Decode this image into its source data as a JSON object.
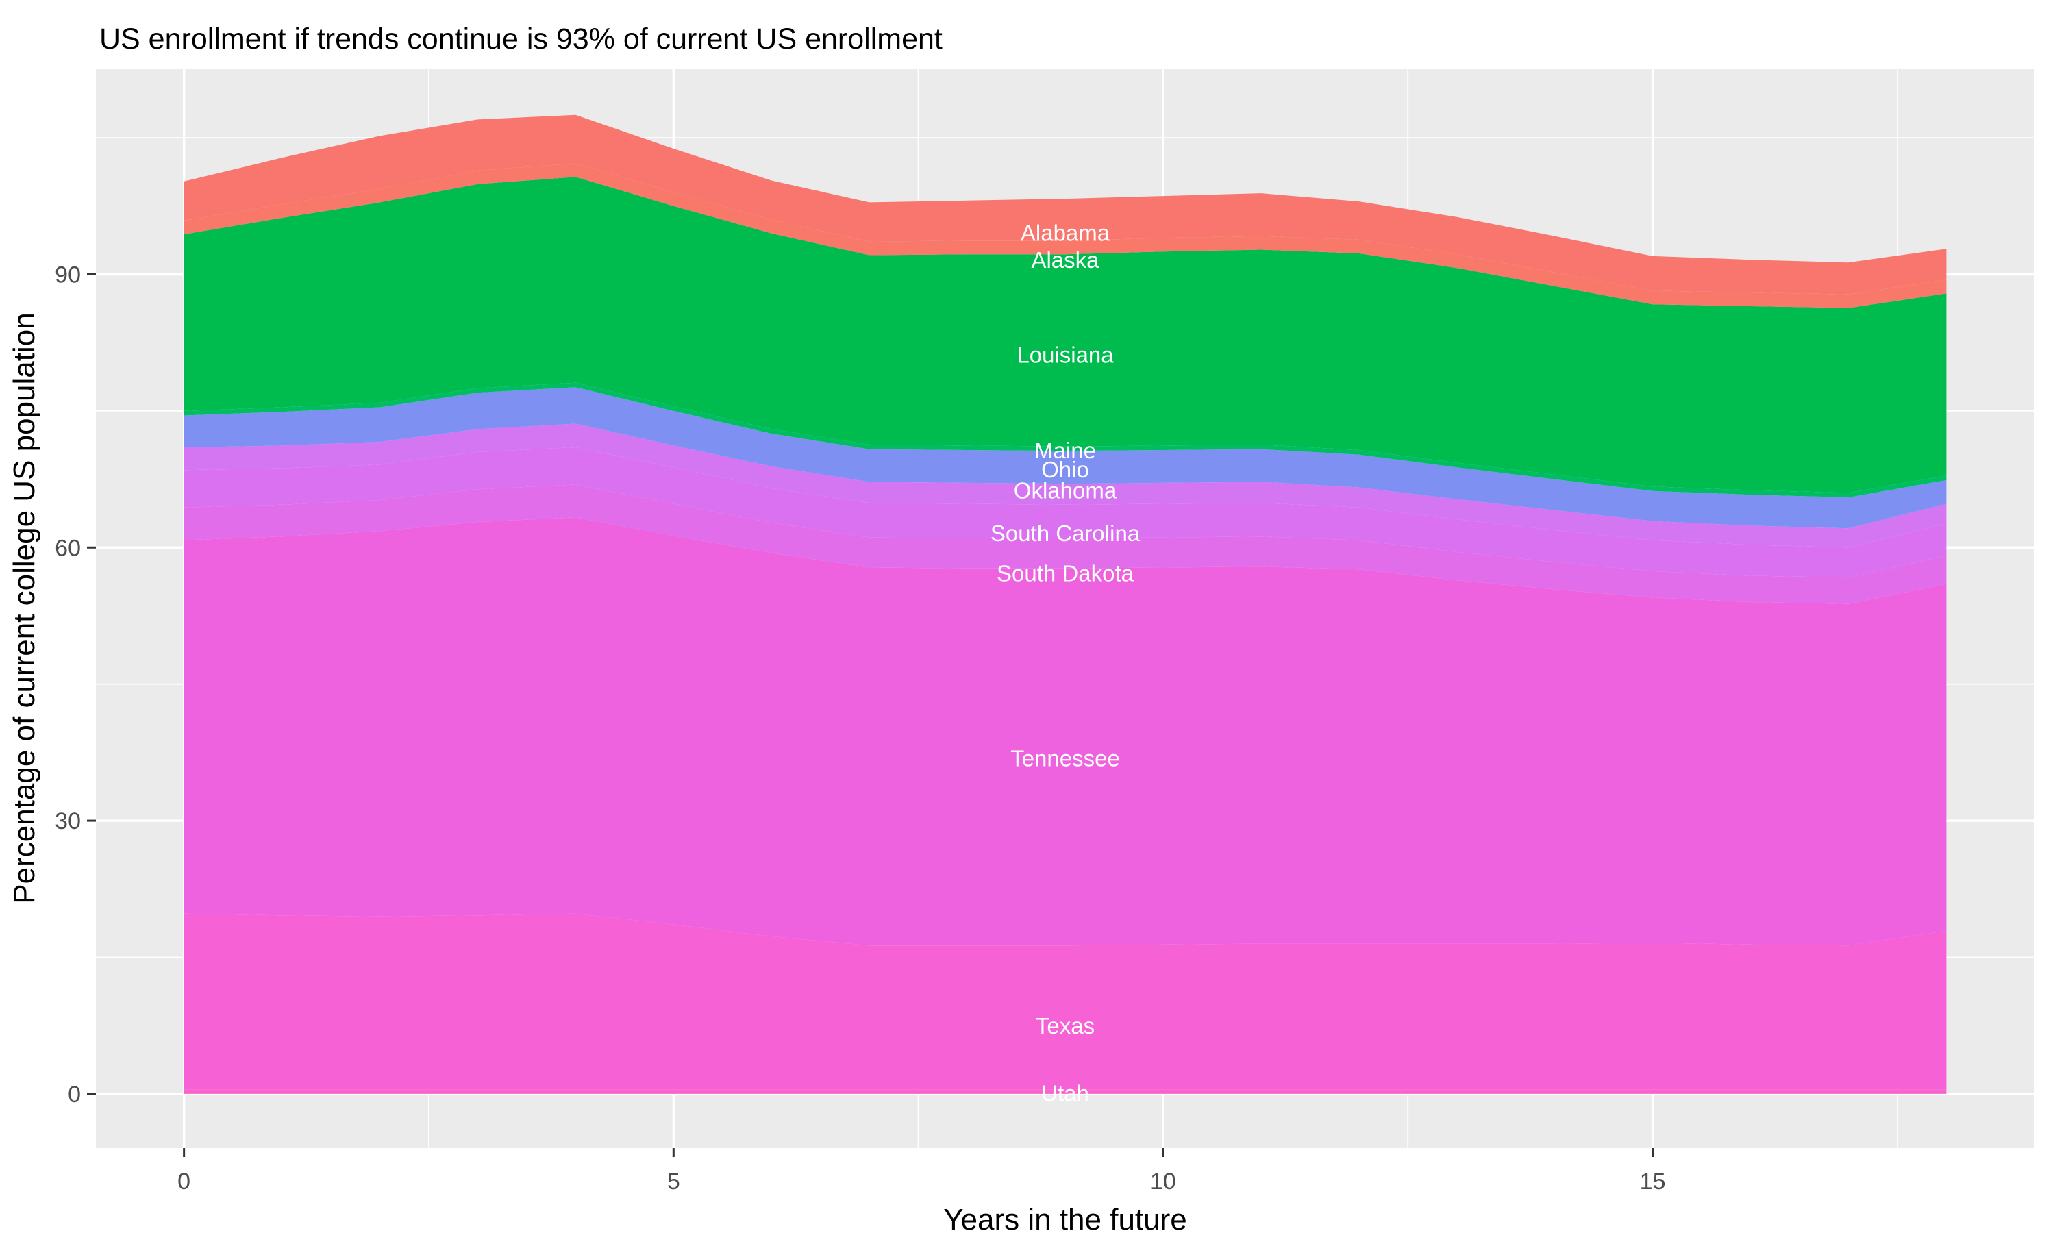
{
  "title": "US enrollment if trends continue is 93% of current US enrollment",
  "chart_data": {
    "type": "area",
    "stacked": true,
    "title": "US enrollment if trends continue is 93% of current US enrollment",
    "xlabel": "Years in the future",
    "ylabel": "Percentage of current college US population",
    "x": [
      0,
      1,
      2,
      3,
      4,
      5,
      6,
      7,
      8,
      9,
      10,
      11,
      12,
      13,
      14,
      15,
      16,
      17,
      18
    ],
    "xlim": [
      -0.9,
      18.9
    ],
    "ylim": [
      -5.95,
      112.6
    ],
    "x_ticks": [
      0,
      5,
      10,
      15
    ],
    "x_minor_ticks": [
      2.5,
      7.5,
      12.5,
      17.5
    ],
    "y_ticks": [
      0,
      30,
      60,
      90
    ],
    "y_minor_ticks": [
      15,
      45,
      75,
      105
    ],
    "grid": "on",
    "legend": "none",
    "panel_background": "#ebebeb",
    "gridline_color": "#ffffff",
    "label_x_year": 9,
    "series": [
      {
        "name": "Utah",
        "color": "#f963cd",
        "label_y": 0.1,
        "values": [
          0.5,
          0.5,
          0.5,
          0.5,
          0.5,
          0.5,
          0.5,
          0.5,
          0.5,
          0.5,
          0.5,
          0.5,
          0.5,
          0.5,
          0.5,
          0.5,
          0.5,
          0.5,
          0.5
        ]
      },
      {
        "name": "Texas",
        "color": "#f661d6",
        "label_y": 7.5,
        "values": [
          19.3,
          19.1,
          19.0,
          19.1,
          19.3,
          18.1,
          16.8,
          15.8,
          15.8,
          15.8,
          15.9,
          16.0,
          16.0,
          16.0,
          16.0,
          16.1,
          15.9,
          15.8,
          17.4
        ]
      },
      {
        "name": "Tennessee",
        "color": "#ee62df",
        "label_y": 36.9,
        "values": [
          41.0,
          41.6,
          42.3,
          43.2,
          43.5,
          42.7,
          42.1,
          41.5,
          41.4,
          41.4,
          41.4,
          41.4,
          41.1,
          39.9,
          38.9,
          37.9,
          37.6,
          37.5,
          38.1
        ]
      },
      {
        "name": "South Dakota",
        "color": "#e26deb",
        "label_y": 57.2,
        "values": [
          3.6,
          3.5,
          3.4,
          3.6,
          3.6,
          3.5,
          3.3,
          3.3,
          3.3,
          3.3,
          3.3,
          3.3,
          3.2,
          3.1,
          3.0,
          2.9,
          2.9,
          2.9,
          3.1
        ]
      },
      {
        "name": "South Carolina",
        "color": "#da71f0",
        "label_y": 61.6,
        "values": [
          4.1,
          4.0,
          3.9,
          4.1,
          4.1,
          4.0,
          3.8,
          3.8,
          3.8,
          3.7,
          3.7,
          3.7,
          3.6,
          3.6,
          3.5,
          3.4,
          3.4,
          3.3,
          3.5
        ]
      },
      {
        "name": "Oklahoma",
        "color": "#d476f1",
        "label_y": 66.3,
        "values": [
          2.5,
          2.5,
          2.5,
          2.5,
          2.6,
          2.4,
          2.4,
          2.3,
          2.3,
          2.3,
          2.3,
          2.3,
          2.2,
          2.2,
          2.2,
          2.1,
          2.1,
          2.1,
          2.2
        ]
      },
      {
        "name": "Ohio",
        "color": "#7e90f2",
        "label_y": 68.6,
        "values": [
          3.5,
          3.7,
          3.8,
          4.0,
          4.0,
          3.8,
          3.6,
          3.6,
          3.6,
          3.6,
          3.6,
          3.6,
          3.6,
          3.5,
          3.4,
          3.3,
          3.4,
          3.4,
          2.6
        ]
      },
      {
        "name": "Maine",
        "color": "#00bd62",
        "label_y": 70.7,
        "values": [
          0.5,
          0.5,
          0.5,
          0.5,
          0.5,
          0.5,
          0.5,
          0.5,
          0.5,
          0.5,
          0.5,
          0.5,
          0.5,
          0.5,
          0.5,
          0.5,
          0.5,
          0.5,
          0.5
        ]
      },
      {
        "name": "Louisiana",
        "color": "#00bb4e",
        "label_y": 81.2,
        "values": [
          19.4,
          20.8,
          22.0,
          22.4,
          22.6,
          22.0,
          21.5,
          20.8,
          21.0,
          21.1,
          21.3,
          21.4,
          21.6,
          21.4,
          20.7,
          20.0,
          20.2,
          20.3,
          20.0
        ]
      },
      {
        "name": "Alaska",
        "color": "#f8786a",
        "label_y": 91.6,
        "values": [
          1.5,
          1.5,
          1.5,
          1.5,
          1.5,
          1.5,
          1.5,
          1.5,
          1.5,
          1.5,
          1.5,
          1.5,
          1.5,
          1.5,
          1.5,
          1.5,
          1.5,
          1.5,
          1.5
        ]
      },
      {
        "name": "Alabama",
        "color": "#f8766d",
        "label_y": 94.6,
        "values": [
          4.3,
          5.1,
          5.8,
          5.6,
          5.3,
          4.8,
          4.3,
          4.3,
          4.4,
          4.6,
          4.6,
          4.7,
          4.2,
          4.1,
          4.0,
          3.8,
          3.6,
          3.5,
          3.4
        ]
      }
    ]
  }
}
